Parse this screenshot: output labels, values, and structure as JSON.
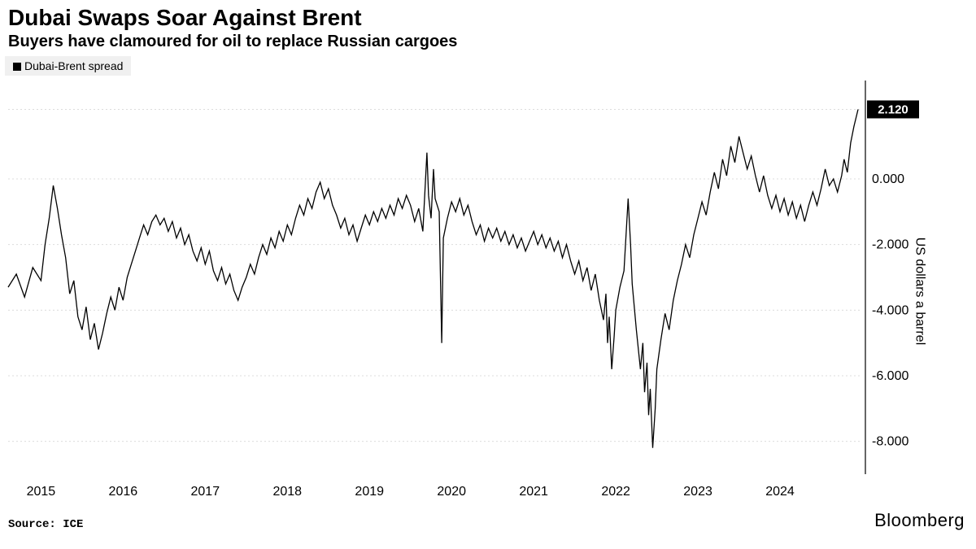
{
  "title": "Dubai Swaps Soar Against Brent",
  "subtitle": "Buyers have clamoured for oil to replace Russian cargoes",
  "legend_label": "Dubai-Brent spread",
  "source": "Source: ICE",
  "brand": "Bloomberg",
  "chart": {
    "type": "line",
    "ylabel": "US dollars a barrel",
    "x_ticks": [
      "2015",
      "2016",
      "2017",
      "2018",
      "2019",
      "2020",
      "2021",
      "2022",
      "2023",
      "2024"
    ],
    "y_ticks": [
      2.12,
      0.0,
      -2.0,
      -4.0,
      -6.0,
      -8.0
    ],
    "y_tick_labels": [
      "2.120",
      "0.000",
      "-2.000",
      "-4.000",
      "-6.000",
      "-8.000"
    ],
    "ylim": [
      -9.0,
      3.0
    ],
    "xlim": [
      2014.6,
      2025.0
    ],
    "last_value": 2.12,
    "last_label": "2.120",
    "series_color": "#000000",
    "grid_color": "#dcdcdc",
    "background_color": "#ffffff",
    "line_width": 1.3,
    "values": [
      [
        2014.6,
        -3.3
      ],
      [
        2014.7,
        -2.9
      ],
      [
        2014.8,
        -3.6
      ],
      [
        2014.9,
        -2.7
      ],
      [
        2015.0,
        -3.1
      ],
      [
        2015.05,
        -2.0
      ],
      [
        2015.1,
        -1.2
      ],
      [
        2015.15,
        -0.2
      ],
      [
        2015.2,
        -0.9
      ],
      [
        2015.25,
        -1.7
      ],
      [
        2015.3,
        -2.4
      ],
      [
        2015.35,
        -3.5
      ],
      [
        2015.4,
        -3.1
      ],
      [
        2015.45,
        -4.2
      ],
      [
        2015.5,
        -4.6
      ],
      [
        2015.55,
        -3.9
      ],
      [
        2015.6,
        -4.9
      ],
      [
        2015.65,
        -4.4
      ],
      [
        2015.7,
        -5.2
      ],
      [
        2015.75,
        -4.7
      ],
      [
        2015.8,
        -4.1
      ],
      [
        2015.85,
        -3.6
      ],
      [
        2015.9,
        -4.0
      ],
      [
        2015.95,
        -3.3
      ],
      [
        2016.0,
        -3.7
      ],
      [
        2016.05,
        -3.0
      ],
      [
        2016.1,
        -2.6
      ],
      [
        2016.15,
        -2.2
      ],
      [
        2016.2,
        -1.8
      ],
      [
        2016.25,
        -1.4
      ],
      [
        2016.3,
        -1.7
      ],
      [
        2016.35,
        -1.3
      ],
      [
        2016.4,
        -1.1
      ],
      [
        2016.45,
        -1.4
      ],
      [
        2016.5,
        -1.2
      ],
      [
        2016.55,
        -1.6
      ],
      [
        2016.6,
        -1.3
      ],
      [
        2016.65,
        -1.8
      ],
      [
        2016.7,
        -1.5
      ],
      [
        2016.75,
        -2.0
      ],
      [
        2016.8,
        -1.7
      ],
      [
        2016.85,
        -2.2
      ],
      [
        2016.9,
        -2.5
      ],
      [
        2016.95,
        -2.1
      ],
      [
        2017.0,
        -2.6
      ],
      [
        2017.05,
        -2.2
      ],
      [
        2017.1,
        -2.8
      ],
      [
        2017.15,
        -3.1
      ],
      [
        2017.2,
        -2.7
      ],
      [
        2017.25,
        -3.2
      ],
      [
        2017.3,
        -2.9
      ],
      [
        2017.35,
        -3.4
      ],
      [
        2017.4,
        -3.7
      ],
      [
        2017.45,
        -3.3
      ],
      [
        2017.5,
        -3.0
      ],
      [
        2017.55,
        -2.6
      ],
      [
        2017.6,
        -2.9
      ],
      [
        2017.65,
        -2.4
      ],
      [
        2017.7,
        -2.0
      ],
      [
        2017.75,
        -2.3
      ],
      [
        2017.8,
        -1.8
      ],
      [
        2017.85,
        -2.1
      ],
      [
        2017.9,
        -1.6
      ],
      [
        2017.95,
        -1.9
      ],
      [
        2018.0,
        -1.4
      ],
      [
        2018.05,
        -1.7
      ],
      [
        2018.1,
        -1.2
      ],
      [
        2018.15,
        -0.8
      ],
      [
        2018.2,
        -1.1
      ],
      [
        2018.25,
        -0.6
      ],
      [
        2018.3,
        -0.9
      ],
      [
        2018.35,
        -0.4
      ],
      [
        2018.4,
        -0.1
      ],
      [
        2018.45,
        -0.6
      ],
      [
        2018.5,
        -0.3
      ],
      [
        2018.55,
        -0.8
      ],
      [
        2018.6,
        -1.1
      ],
      [
        2018.65,
        -1.5
      ],
      [
        2018.7,
        -1.2
      ],
      [
        2018.75,
        -1.7
      ],
      [
        2018.8,
        -1.4
      ],
      [
        2018.85,
        -1.9
      ],
      [
        2018.9,
        -1.5
      ],
      [
        2018.95,
        -1.1
      ],
      [
        2019.0,
        -1.4
      ],
      [
        2019.05,
        -1.0
      ],
      [
        2019.1,
        -1.3
      ],
      [
        2019.15,
        -0.9
      ],
      [
        2019.2,
        -1.2
      ],
      [
        2019.25,
        -0.8
      ],
      [
        2019.3,
        -1.1
      ],
      [
        2019.35,
        -0.6
      ],
      [
        2019.4,
        -0.9
      ],
      [
        2019.45,
        -0.5
      ],
      [
        2019.5,
        -0.8
      ],
      [
        2019.55,
        -1.3
      ],
      [
        2019.6,
        -0.9
      ],
      [
        2019.65,
        -1.6
      ],
      [
        2019.7,
        0.8
      ],
      [
        2019.72,
        -0.5
      ],
      [
        2019.75,
        -1.2
      ],
      [
        2019.78,
        0.3
      ],
      [
        2019.8,
        -0.6
      ],
      [
        2019.85,
        -1.0
      ],
      [
        2019.88,
        -5.0
      ],
      [
        2019.9,
        -1.8
      ],
      [
        2019.95,
        -1.2
      ],
      [
        2020.0,
        -0.7
      ],
      [
        2020.05,
        -1.0
      ],
      [
        2020.1,
        -0.6
      ],
      [
        2020.15,
        -1.1
      ],
      [
        2020.2,
        -0.8
      ],
      [
        2020.25,
        -1.3
      ],
      [
        2020.3,
        -1.7
      ],
      [
        2020.35,
        -1.4
      ],
      [
        2020.4,
        -1.9
      ],
      [
        2020.45,
        -1.5
      ],
      [
        2020.5,
        -1.8
      ],
      [
        2020.55,
        -1.5
      ],
      [
        2020.6,
        -1.9
      ],
      [
        2020.65,
        -1.6
      ],
      [
        2020.7,
        -2.0
      ],
      [
        2020.75,
        -1.7
      ],
      [
        2020.8,
        -2.1
      ],
      [
        2020.85,
        -1.8
      ],
      [
        2020.9,
        -2.2
      ],
      [
        2020.95,
        -1.9
      ],
      [
        2021.0,
        -1.6
      ],
      [
        2021.05,
        -2.0
      ],
      [
        2021.1,
        -1.7
      ],
      [
        2021.15,
        -2.1
      ],
      [
        2021.2,
        -1.8
      ],
      [
        2021.25,
        -2.2
      ],
      [
        2021.3,
        -1.9
      ],
      [
        2021.35,
        -2.4
      ],
      [
        2021.4,
        -2.0
      ],
      [
        2021.45,
        -2.5
      ],
      [
        2021.5,
        -2.9
      ],
      [
        2021.55,
        -2.5
      ],
      [
        2021.6,
        -3.1
      ],
      [
        2021.65,
        -2.7
      ],
      [
        2021.7,
        -3.4
      ],
      [
        2021.75,
        -2.9
      ],
      [
        2021.8,
        -3.7
      ],
      [
        2021.85,
        -4.3
      ],
      [
        2021.88,
        -3.5
      ],
      [
        2021.9,
        -5.0
      ],
      [
        2021.92,
        -4.2
      ],
      [
        2021.95,
        -5.8
      ],
      [
        2021.98,
        -4.8
      ],
      [
        2022.0,
        -4.0
      ],
      [
        2022.05,
        -3.3
      ],
      [
        2022.1,
        -2.8
      ],
      [
        2022.15,
        -0.6
      ],
      [
        2022.18,
        -2.0
      ],
      [
        2022.2,
        -3.2
      ],
      [
        2022.25,
        -4.6
      ],
      [
        2022.3,
        -5.8
      ],
      [
        2022.33,
        -5.0
      ],
      [
        2022.35,
        -6.5
      ],
      [
        2022.38,
        -5.6
      ],
      [
        2022.4,
        -7.2
      ],
      [
        2022.42,
        -6.4
      ],
      [
        2022.45,
        -8.2
      ],
      [
        2022.48,
        -7.0
      ],
      [
        2022.5,
        -5.8
      ],
      [
        2022.55,
        -4.9
      ],
      [
        2022.6,
        -4.1
      ],
      [
        2022.65,
        -4.6
      ],
      [
        2022.7,
        -3.7
      ],
      [
        2022.75,
        -3.1
      ],
      [
        2022.8,
        -2.6
      ],
      [
        2022.85,
        -2.0
      ],
      [
        2022.9,
        -2.4
      ],
      [
        2022.95,
        -1.7
      ],
      [
        2023.0,
        -1.2
      ],
      [
        2023.05,
        -0.7
      ],
      [
        2023.1,
        -1.1
      ],
      [
        2023.15,
        -0.4
      ],
      [
        2023.2,
        0.2
      ],
      [
        2023.25,
        -0.3
      ],
      [
        2023.3,
        0.6
      ],
      [
        2023.35,
        0.1
      ],
      [
        2023.4,
        1.0
      ],
      [
        2023.45,
        0.5
      ],
      [
        2023.5,
        1.3
      ],
      [
        2023.55,
        0.8
      ],
      [
        2023.6,
        0.3
      ],
      [
        2023.65,
        0.7
      ],
      [
        2023.7,
        0.1
      ],
      [
        2023.75,
        -0.4
      ],
      [
        2023.8,
        0.1
      ],
      [
        2023.85,
        -0.5
      ],
      [
        2023.9,
        -0.9
      ],
      [
        2023.95,
        -0.5
      ],
      [
        2024.0,
        -1.0
      ],
      [
        2024.05,
        -0.6
      ],
      [
        2024.1,
        -1.1
      ],
      [
        2024.15,
        -0.7
      ],
      [
        2024.2,
        -1.2
      ],
      [
        2024.25,
        -0.8
      ],
      [
        2024.3,
        -1.3
      ],
      [
        2024.35,
        -0.8
      ],
      [
        2024.4,
        -0.4
      ],
      [
        2024.45,
        -0.8
      ],
      [
        2024.5,
        -0.3
      ],
      [
        2024.55,
        0.3
      ],
      [
        2024.6,
        -0.2
      ],
      [
        2024.65,
        0.0
      ],
      [
        2024.7,
        -0.4
      ],
      [
        2024.75,
        0.1
      ],
      [
        2024.78,
        0.6
      ],
      [
        2024.82,
        0.2
      ],
      [
        2024.86,
        1.1
      ],
      [
        2024.9,
        1.6
      ],
      [
        2024.95,
        2.12
      ]
    ]
  }
}
